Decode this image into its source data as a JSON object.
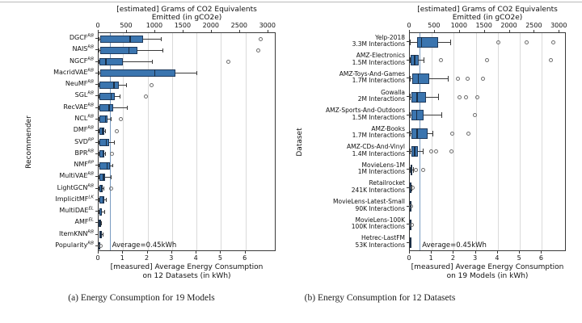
{
  "captions": {
    "a": "(a) Energy Consumption for 19 Models",
    "b": "(b) Energy Consumption for 12 Datasets"
  },
  "colors": {
    "box_fill": "#3b75af",
    "box_edge": "#1f3a5c",
    "median": "#1a2e45",
    "whisker": "#3a3a3a",
    "outlier": "#6e6e6e",
    "grid": "#dadada",
    "axis": "#3a3a3a",
    "average_line": "#7a9cc2",
    "text": "#111111"
  },
  "chart_data": [
    {
      "type": "boxplot-horizontal",
      "panel": "a",
      "top_axis_title_line1": "[estimated] Grams of CO2 Equivalents",
      "top_axis_title_line2": "Emitted (in gCO2e)",
      "bottom_axis_title_line1": "[measured] Average Energy Consumption",
      "bottom_axis_title_line2": "on 12 Datasets (in kWh)",
      "ylabel": "Recommender",
      "top_axis_ticks_gco2e": [
        0,
        500,
        1000,
        1500,
        2000,
        2500,
        3000
      ],
      "bottom_axis_ticks_kwh": [
        0,
        1,
        2,
        3,
        4,
        5,
        6
      ],
      "xlim_kwh": [
        0,
        7.2
      ],
      "gco2e_per_kwh": 433,
      "grid": true,
      "average_line": {
        "value_kwh": 0.45,
        "label": "Average=0.45kWh"
      },
      "rows": [
        {
          "label": "DGCF",
          "sup": "RB",
          "whisker_low": 0,
          "q1": 0.05,
          "median": 1.27,
          "q3": 1.82,
          "whisker_high": 2.53,
          "outliers": [
            6.6
          ]
        },
        {
          "label": "NAIS",
          "sup": "RB",
          "whisker_low": 0,
          "q1": 0.06,
          "median": 1.21,
          "q3": 1.6,
          "whisker_high": 2.6,
          "outliers": [
            6.5
          ]
        },
        {
          "label": "NGCF",
          "sup": "RB",
          "whisker_low": 0,
          "q1": 0.03,
          "median": 0.28,
          "q3": 1.0,
          "whisker_high": 2.18,
          "outliers": [
            5.3
          ]
        },
        {
          "label": "MacridVAE",
          "sup": "RB",
          "whisker_low": 0,
          "q1": 0.05,
          "median": 2.28,
          "q3": 3.15,
          "whisker_high": 4.0,
          "outliers": []
        },
        {
          "label": "NeuMF",
          "sup": "RB",
          "whisker_low": 0,
          "q1": 0.03,
          "median": 0.6,
          "q3": 0.83,
          "whisker_high": 1.13,
          "outliers": [
            2.15
          ]
        },
        {
          "label": "SGL",
          "sup": "RB",
          "whisker_low": 0,
          "q1": 0.03,
          "median": 0.48,
          "q3": 0.66,
          "whisker_high": 0.85,
          "outliers": [
            1.93
          ]
        },
        {
          "label": "RecVAE",
          "sup": "RB",
          "whisker_low": 0,
          "q1": 0.03,
          "median": 0.4,
          "q3": 0.59,
          "whisker_high": 1.15,
          "outliers": []
        },
        {
          "label": "NCL",
          "sup": "RB",
          "whisker_low": 0,
          "q1": 0.02,
          "median": 0.25,
          "q3": 0.35,
          "whisker_high": 0.5,
          "outliers": [
            0.88
          ]
        },
        {
          "label": "DMF",
          "sup": "RB",
          "whisker_low": 0,
          "q1": 0.02,
          "median": 0.14,
          "q3": 0.22,
          "whisker_high": 0.28,
          "outliers": [
            0.72
          ]
        },
        {
          "label": "SVD",
          "sup": "RP",
          "whisker_low": 0,
          "q1": 0.04,
          "median": 0.3,
          "q3": 0.43,
          "whisker_high": 0.64,
          "outliers": []
        },
        {
          "label": "BPR",
          "sup": "RB",
          "whisker_low": 0,
          "q1": 0.02,
          "median": 0.15,
          "q3": 0.23,
          "whisker_high": 0.28,
          "outliers": [
            0.53
          ]
        },
        {
          "label": "NMF",
          "sup": "RP",
          "whisker_low": 0,
          "q1": 0.04,
          "median": 0.32,
          "q3": 0.47,
          "whisker_high": 0.56,
          "outliers": []
        },
        {
          "label": "MultiVAE",
          "sup": "RB",
          "whisker_low": 0,
          "q1": 0.02,
          "median": 0.17,
          "q3": 0.26,
          "whisker_high": 0.49,
          "outliers": []
        },
        {
          "label": "LightGCN",
          "sup": "RB",
          "whisker_low": 0,
          "q1": 0.02,
          "median": 0.11,
          "q3": 0.17,
          "whisker_high": 0.21,
          "outliers": [
            0.48
          ]
        },
        {
          "label": "ImplicitMF",
          "sup": "LK",
          "whisker_low": 0,
          "q1": 0.03,
          "median": 0.15,
          "q3": 0.22,
          "whisker_high": 0.3,
          "outliers": []
        },
        {
          "label": "MultiDAE",
          "sup": "EL",
          "whisker_low": 0,
          "q1": 0.02,
          "median": 0.09,
          "q3": 0.14,
          "whisker_high": 0.23,
          "outliers": []
        },
        {
          "label": "AMF",
          "sup": "EL",
          "whisker_low": 0,
          "q1": 0.01,
          "median": 0.04,
          "q3": 0.07,
          "whisker_high": 0.1,
          "outliers": []
        },
        {
          "label": "ItemKNN",
          "sup": "RB",
          "whisker_low": 0.02,
          "q1": 0.04,
          "median": 0.08,
          "q3": 0.12,
          "whisker_high": 0.16,
          "outliers": []
        },
        {
          "label": "Popularity",
          "sup": "RB",
          "whisker_low": 0,
          "q1": 0.005,
          "median": 0.01,
          "q3": 0.02,
          "whisker_high": 0.03,
          "outliers": [
            0.06
          ]
        }
      ]
    },
    {
      "type": "boxplot-horizontal",
      "panel": "b",
      "top_axis_title_line1": "[estimated] Grams of CO2 Equivalents",
      "top_axis_title_line2": "Emitted (in gCO2e)",
      "bottom_axis_title_line1": "[measured] Average Energy Consumption",
      "bottom_axis_title_line2": "on 19 Models (in kWh)",
      "ylabel": "Dataset",
      "top_axis_ticks_gco2e": [
        0,
        500,
        1000,
        1500,
        2000,
        2500,
        3000
      ],
      "bottom_axis_ticks_kwh": [
        0,
        1,
        2,
        3,
        4,
        5,
        6
      ],
      "xlim_kwh": [
        0,
        7.05
      ],
      "gco2e_per_kwh": 441,
      "grid": true,
      "average_line": {
        "value_kwh": 0.45,
        "label": "Average=0.45kWh"
      },
      "rows": [
        {
          "label": "Yelp-2018",
          "sublabel": "3.3M Interactions",
          "whisker_low": 0,
          "q1": 0.34,
          "median": 0.5,
          "q3": 1.3,
          "whisker_high": 1.85,
          "outliers": [
            4.0,
            5.3,
            6.5
          ]
        },
        {
          "label": "AMZ-Electronics",
          "sublabel": "1.5M Interactions",
          "whisker_low": 0,
          "q1": 0.04,
          "median": 0.2,
          "q3": 0.42,
          "whisker_high": 0.63,
          "outliers": [
            1.4,
            3.5,
            6.4
          ]
        },
        {
          "label": "AMZ-Toys-And-Games",
          "sublabel": "1.7M Interactions",
          "whisker_low": 0,
          "q1": 0.12,
          "median": 0.35,
          "q3": 0.88,
          "whisker_high": 1.74,
          "outliers": [
            2.15,
            2.6,
            3.3
          ]
        },
        {
          "label": "Gowalla",
          "sublabel": "2M Interactions",
          "whisker_low": 0,
          "q1": 0.09,
          "median": 0.3,
          "q3": 0.73,
          "whisker_high": 1.3,
          "outliers": [
            2.25,
            2.55,
            3.05
          ]
        },
        {
          "label": "AMZ-Sports-And-Outdoors",
          "sublabel": "1.5M Interactions",
          "whisker_low": 0,
          "q1": 0.09,
          "median": 0.28,
          "q3": 0.63,
          "whisker_high": 1.43,
          "outliers": [
            2.95
          ]
        },
        {
          "label": "AMZ-Books",
          "sublabel": "1.7M Interactions",
          "whisker_low": 0,
          "q1": 0.09,
          "median": 0.3,
          "q3": 0.79,
          "whisker_high": 1.03,
          "outliers": [
            1.9,
            2.65
          ]
        },
        {
          "label": "AMZ-CDs-And-Vinyl",
          "sublabel": "1.4M Interactions",
          "whisker_low": 0,
          "q1": 0.06,
          "median": 0.2,
          "q3": 0.36,
          "whisker_high": 0.58,
          "outliers": [
            0.97,
            1.18,
            1.88
          ]
        },
        {
          "label": "MovieLens-1M",
          "sublabel": "1M Interactions",
          "whisker_low": 0,
          "q1": 0.02,
          "median": 0.05,
          "q3": 0.1,
          "whisker_high": 0.14,
          "outliers": [
            0.25,
            0.6
          ]
        },
        {
          "label": "Retailrocket",
          "sublabel": "241K Interactions",
          "whisker_low": 0,
          "q1": 0.01,
          "median": 0.03,
          "q3": 0.06,
          "whisker_high": 0.09,
          "outliers": [
            0.12
          ]
        },
        {
          "label": "MovieLens-Latest-Small",
          "sublabel": "90K Interactions",
          "whisker_low": 0,
          "q1": 0.005,
          "median": 0.01,
          "q3": 0.02,
          "whisker_high": 0.03,
          "outliers": [
            0.05
          ]
        },
        {
          "label": "MovieLens-100K",
          "sublabel": "100K Interactions",
          "whisker_low": 0,
          "q1": 0.005,
          "median": 0.01,
          "q3": 0.02,
          "whisker_high": 0.03,
          "outliers": [
            0.06
          ]
        },
        {
          "label": "Hetrec-LastFM",
          "sublabel": "53K Interactions",
          "whisker_low": 0,
          "q1": 0.005,
          "median": 0.01,
          "q3": 0.02,
          "whisker_high": 0.03,
          "outliers": []
        }
      ]
    }
  ]
}
